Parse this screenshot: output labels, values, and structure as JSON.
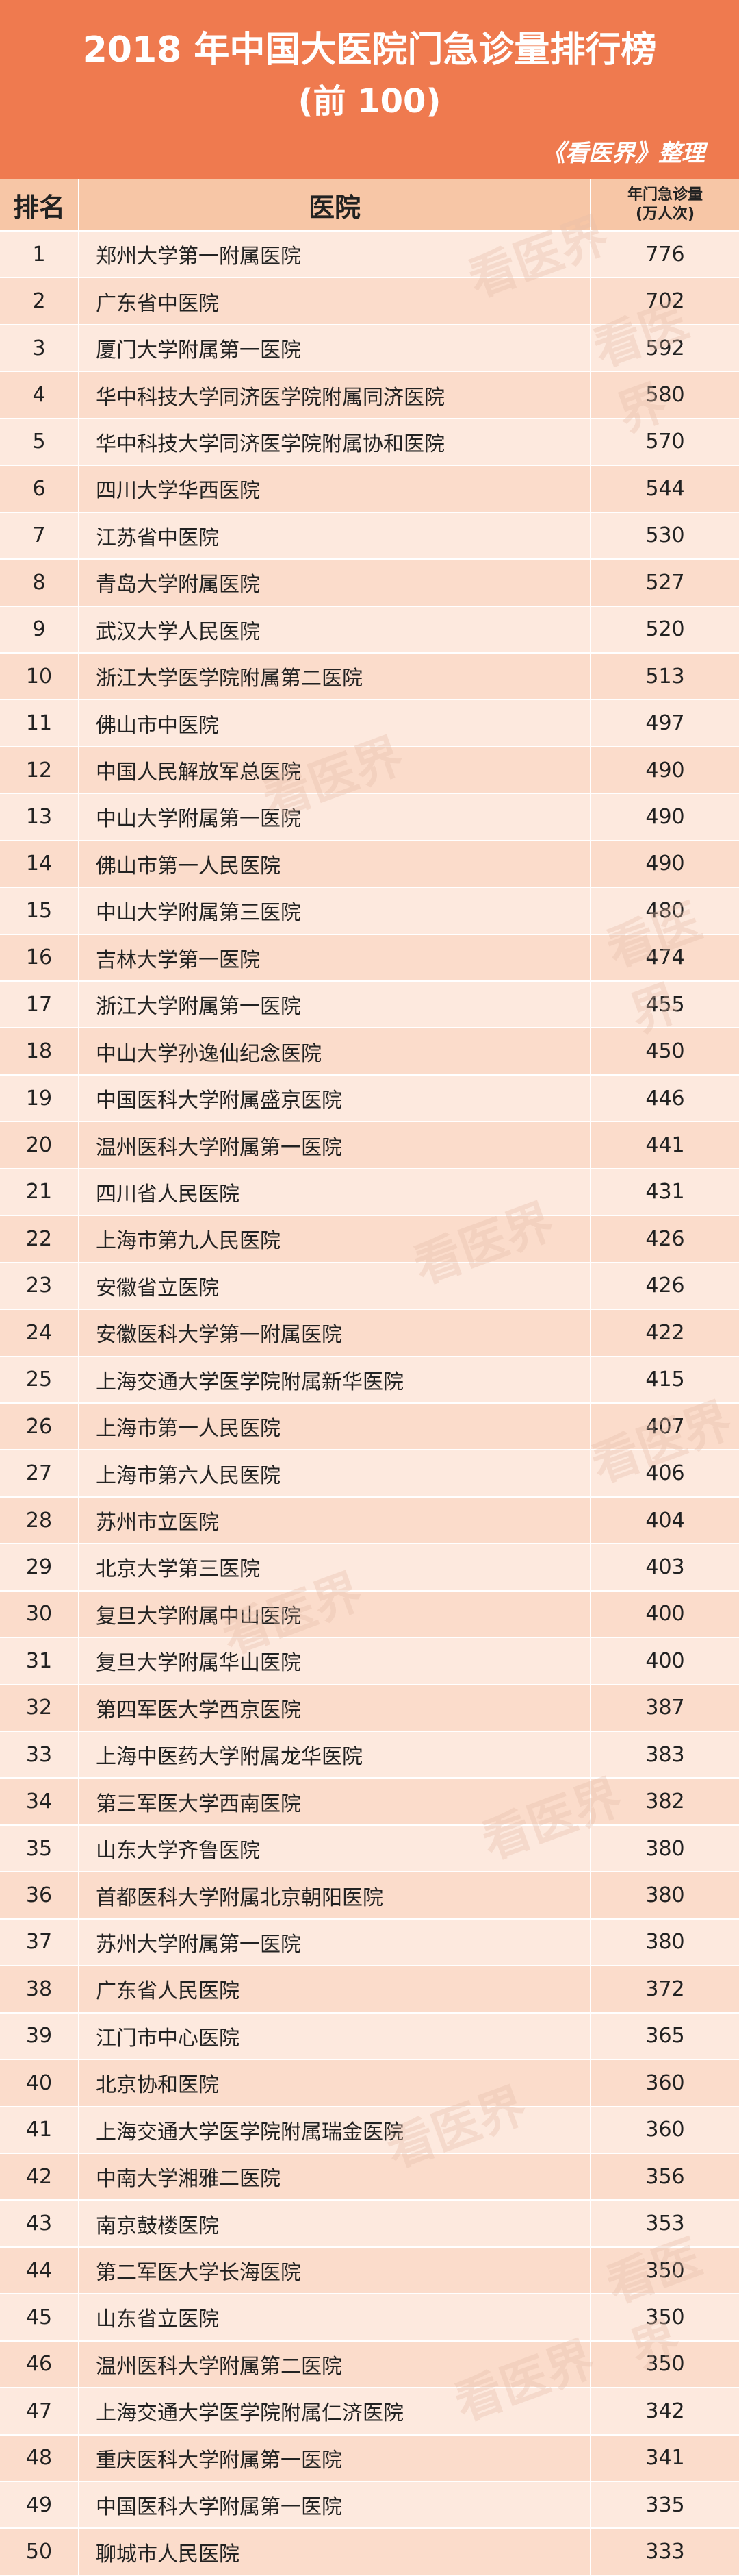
{
  "header": {
    "title": "2018 年中国大医院门急诊量排行榜",
    "subtitle": "(前 100)",
    "credit": "《看医界》整理"
  },
  "watermark": "看医界",
  "table": {
    "columns": [
      "排名",
      "医院",
      "年门急诊量"
    ],
    "unit": "(万人次)",
    "rows": [
      [
        1,
        "郑州大学第一附属医院",
        776
      ],
      [
        2,
        "广东省中医院",
        702
      ],
      [
        3,
        "厦门大学附属第一医院",
        592
      ],
      [
        4,
        "华中科技大学同济医学院附属同济医院",
        580
      ],
      [
        5,
        "华中科技大学同济医学院附属协和医院",
        570
      ],
      [
        6,
        "四川大学华西医院",
        544
      ],
      [
        7,
        "江苏省中医院",
        530
      ],
      [
        8,
        "青岛大学附属医院",
        527
      ],
      [
        9,
        "武汉大学人民医院",
        520
      ],
      [
        10,
        "浙江大学医学院附属第二医院",
        513
      ],
      [
        11,
        "佛山市中医院",
        497
      ],
      [
        12,
        "中国人民解放军总医院",
        490
      ],
      [
        13,
        "中山大学附属第一医院",
        490
      ],
      [
        14,
        "佛山市第一人民医院",
        490
      ],
      [
        15,
        "中山大学附属第三医院",
        480
      ],
      [
        16,
        "吉林大学第一医院",
        474
      ],
      [
        17,
        "浙江大学附属第一医院",
        455
      ],
      [
        18,
        "中山大学孙逸仙纪念医院",
        450
      ],
      [
        19,
        "中国医科大学附属盛京医院",
        446
      ],
      [
        20,
        "温州医科大学附属第一医院",
        441
      ],
      [
        21,
        "四川省人民医院",
        431
      ],
      [
        22,
        "上海市第九人民医院",
        426
      ],
      [
        23,
        "安徽省立医院",
        426
      ],
      [
        24,
        "安徽医科大学第一附属医院",
        422
      ],
      [
        25,
        "上海交通大学医学院附属新华医院",
        415
      ],
      [
        26,
        "上海市第一人民医院",
        407
      ],
      [
        27,
        "上海市第六人民医院",
        406
      ],
      [
        28,
        "苏州市立医院",
        404
      ],
      [
        29,
        "北京大学第三医院",
        403
      ],
      [
        30,
        "复旦大学附属中山医院",
        400
      ],
      [
        31,
        "复旦大学附属华山医院",
        400
      ],
      [
        32,
        "第四军医大学西京医院",
        387
      ],
      [
        33,
        "上海中医药大学附属龙华医院",
        383
      ],
      [
        34,
        "第三军医大学西南医院",
        382
      ],
      [
        35,
        "山东大学齐鲁医院",
        380
      ],
      [
        36,
        "首都医科大学附属北京朝阳医院",
        380
      ],
      [
        37,
        "苏州大学附属第一医院",
        380
      ],
      [
        38,
        "广东省人民医院",
        372
      ],
      [
        39,
        "江门市中心医院",
        365
      ],
      [
        40,
        "北京协和医院",
        360
      ],
      [
        41,
        "上海交通大学医学院附属瑞金医院",
        360
      ],
      [
        42,
        "中南大学湘雅二医院",
        356
      ],
      [
        43,
        "南京鼓楼医院",
        353
      ],
      [
        44,
        "第二军医大学长海医院",
        350
      ],
      [
        45,
        "山东省立医院",
        350
      ],
      [
        46,
        "温州医科大学附属第二医院",
        350
      ],
      [
        47,
        "上海交通大学医学院附属仁济医院",
        342
      ],
      [
        48,
        "重庆医科大学附属第一医院",
        341
      ],
      [
        49,
        "中国医科大学附属第一医院",
        335
      ],
      [
        50,
        "聊城市人民医院",
        333
      ]
    ]
  }
}
